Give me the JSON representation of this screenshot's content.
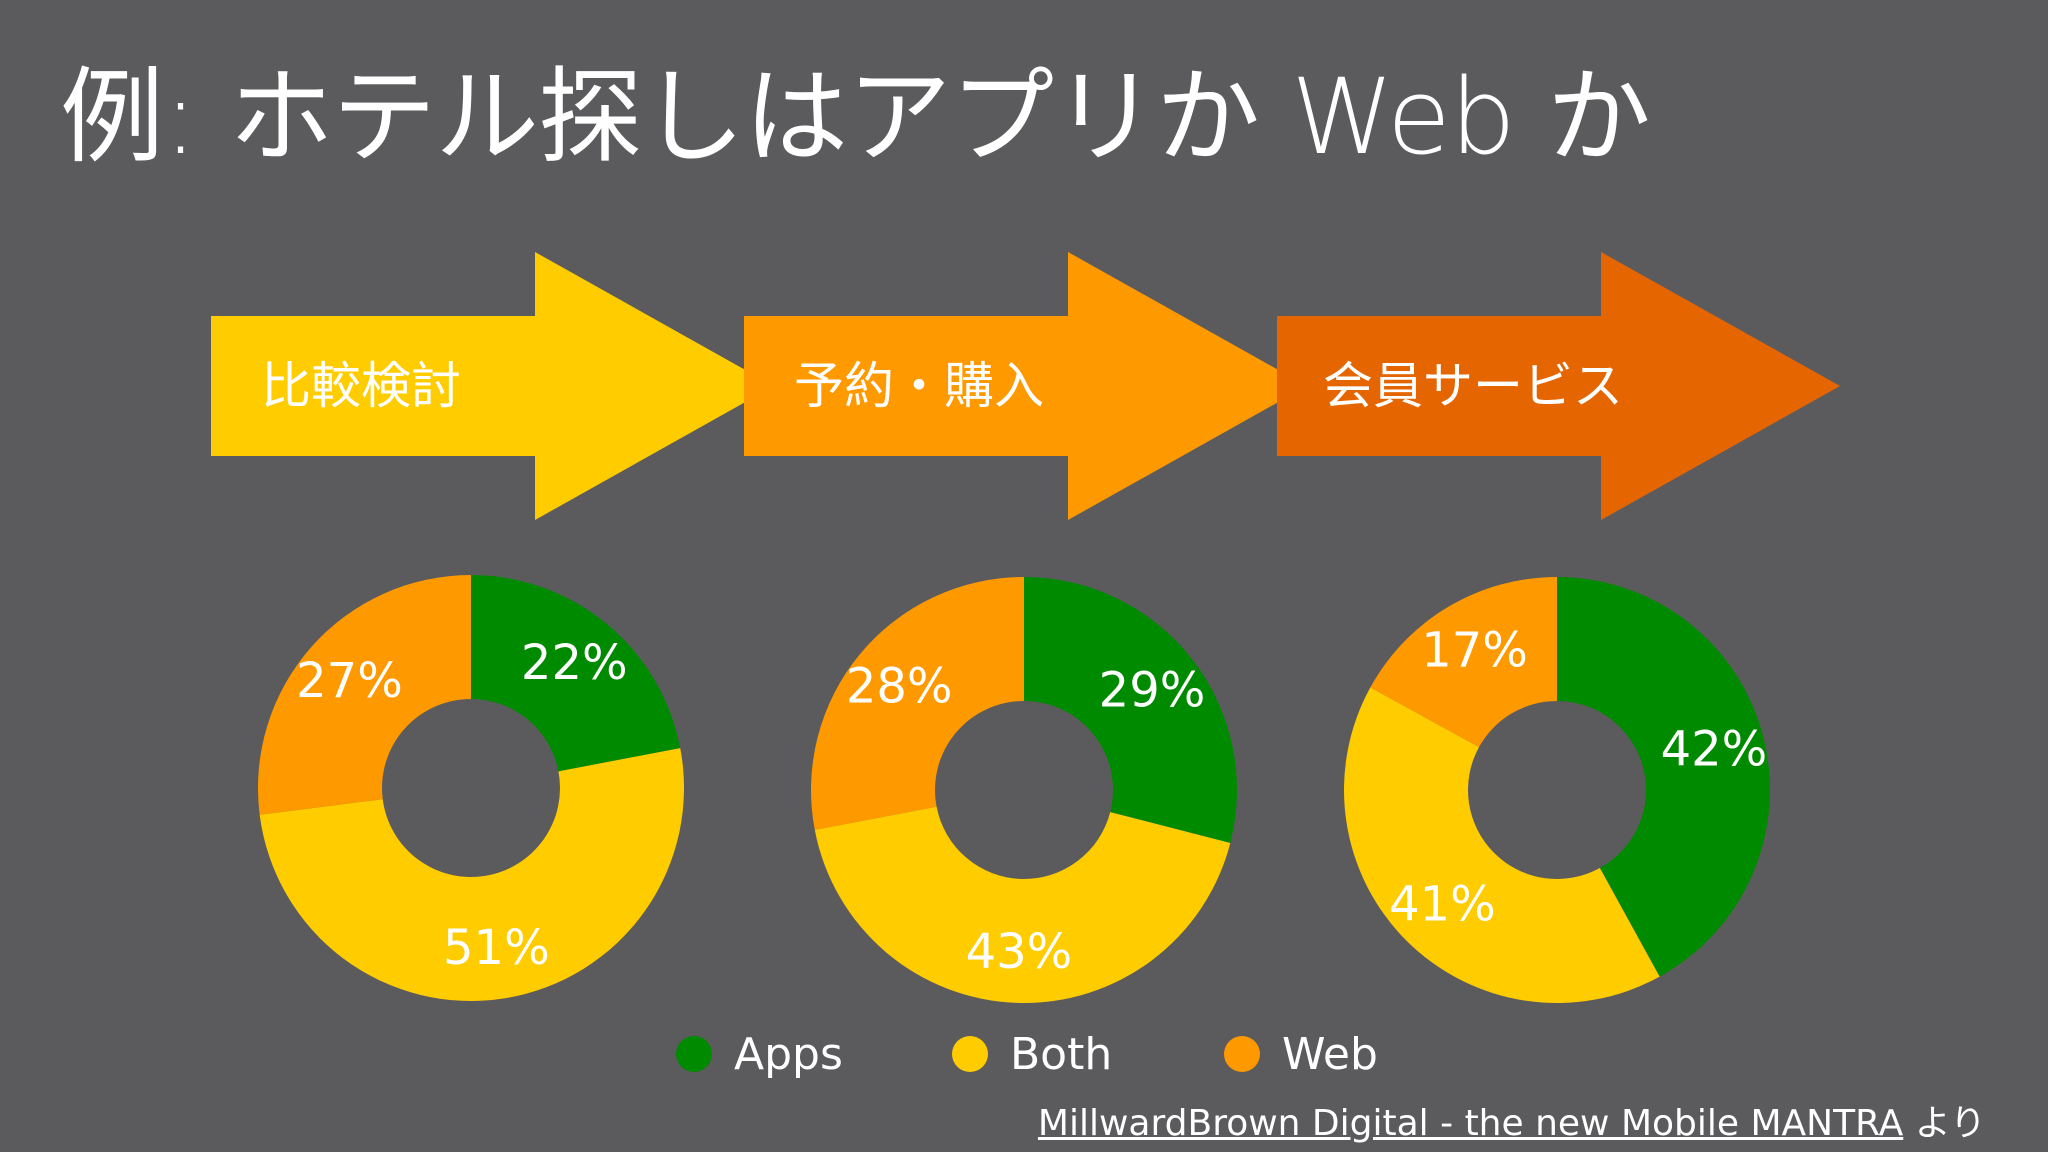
{
  "title": "例: ホテル探しはアプリか Web か",
  "stages": [
    {
      "label": "比較検討",
      "color": "#ffcc00"
    },
    {
      "label": "予約・購入",
      "color": "#ff9900"
    },
    {
      "label": "会員サービス",
      "color": "#e56600"
    }
  ],
  "chart_data": [
    {
      "type": "pie",
      "stage": "比較検討",
      "categories": [
        "Apps",
        "Both",
        "Web"
      ],
      "values": [
        22,
        51,
        27
      ],
      "labels": [
        "22%",
        "51%",
        "27%"
      ]
    },
    {
      "type": "pie",
      "stage": "予約・購入",
      "categories": [
        "Apps",
        "Both",
        "Web"
      ],
      "values": [
        29,
        43,
        28
      ],
      "labels": [
        "29%",
        "43%",
        "28%"
      ]
    },
    {
      "type": "pie",
      "stage": "会員サービス",
      "categories": [
        "Apps",
        "Both",
        "Web"
      ],
      "values": [
        42,
        41,
        17
      ],
      "labels": [
        "42%",
        "41%",
        "17%"
      ]
    }
  ],
  "legend": [
    {
      "label": "Apps",
      "color": "#008a00"
    },
    {
      "label": "Both",
      "color": "#ffcc00"
    },
    {
      "label": "Web",
      "color": "#ff9900"
    }
  ],
  "source": {
    "link_text": "MillwardBrown Digital - the new Mobile MANTRA",
    "suffix": " より"
  }
}
